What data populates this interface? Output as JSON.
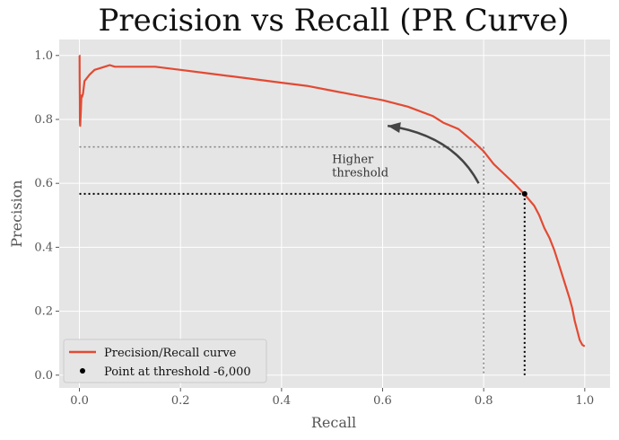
{
  "chart_data": {
    "type": "line",
    "title": "Precision vs Recall (PR Curve)",
    "xlabel": "Recall",
    "ylabel": "Precision",
    "xlim": [
      -0.04,
      1.05
    ],
    "ylim": [
      -0.04,
      1.05
    ],
    "xticks": [
      0.0,
      0.2,
      0.4,
      0.6,
      0.8,
      1.0
    ],
    "yticks": [
      0.0,
      0.2,
      0.4,
      0.6,
      0.8,
      1.0
    ],
    "xtick_labels": [
      "0.0",
      "0.2",
      "0.4",
      "0.6",
      "0.8",
      "1.0"
    ],
    "ytick_labels": [
      "0.0",
      "0.2",
      "0.4",
      "0.6",
      "0.8",
      "1.0"
    ],
    "grid": true,
    "legend_position": "lower-left",
    "colors": {
      "curve": "#e24a33",
      "panel": "#e5e5e5",
      "grid": "#ffffff"
    },
    "series": [
      {
        "name": "Precision/Recall curve",
        "x": [
          1.0,
          0.995,
          0.99,
          0.985,
          0.98,
          0.975,
          0.97,
          0.96,
          0.95,
          0.94,
          0.93,
          0.92,
          0.91,
          0.9,
          0.88,
          0.86,
          0.84,
          0.82,
          0.8,
          0.78,
          0.75,
          0.72,
          0.7,
          0.65,
          0.6,
          0.55,
          0.5,
          0.45,
          0.4,
          0.35,
          0.3,
          0.25,
          0.2,
          0.15,
          0.1,
          0.07,
          0.06,
          0.05,
          0.03,
          0.02,
          0.01,
          0.007,
          0.005,
          0.004,
          0.003,
          0.002,
          0.0015,
          0.001,
          0.0008,
          0.0005,
          0.0003,
          0.0
        ],
        "y": [
          0.09,
          0.095,
          0.11,
          0.14,
          0.17,
          0.21,
          0.24,
          0.29,
          0.34,
          0.39,
          0.43,
          0.46,
          0.5,
          0.53,
          0.567,
          0.6,
          0.63,
          0.66,
          0.7,
          0.73,
          0.77,
          0.79,
          0.81,
          0.84,
          0.86,
          0.875,
          0.89,
          0.905,
          0.915,
          0.925,
          0.935,
          0.945,
          0.955,
          0.965,
          0.965,
          0.965,
          0.97,
          0.965,
          0.955,
          0.94,
          0.92,
          0.88,
          0.87,
          0.875,
          0.83,
          0.8,
          0.78,
          0.79,
          0.86,
          0.93,
          1.0,
          1.0
        ]
      }
    ],
    "threshold_point": {
      "name": "Point at threshold -6,000",
      "x": 0.881,
      "y": 0.567
    },
    "reference_lines": {
      "black_dotted": {
        "x": 0.881,
        "y": 0.567
      },
      "gray_dotted": {
        "x": 0.8,
        "y": 0.714
      }
    },
    "annotation": {
      "lines": [
        "Higher",
        "threshold"
      ],
      "text_at": [
        0.5,
        0.63
      ],
      "arrow_from": [
        0.79,
        0.6
      ],
      "arrow_to": [
        0.61,
        0.78
      ]
    }
  }
}
